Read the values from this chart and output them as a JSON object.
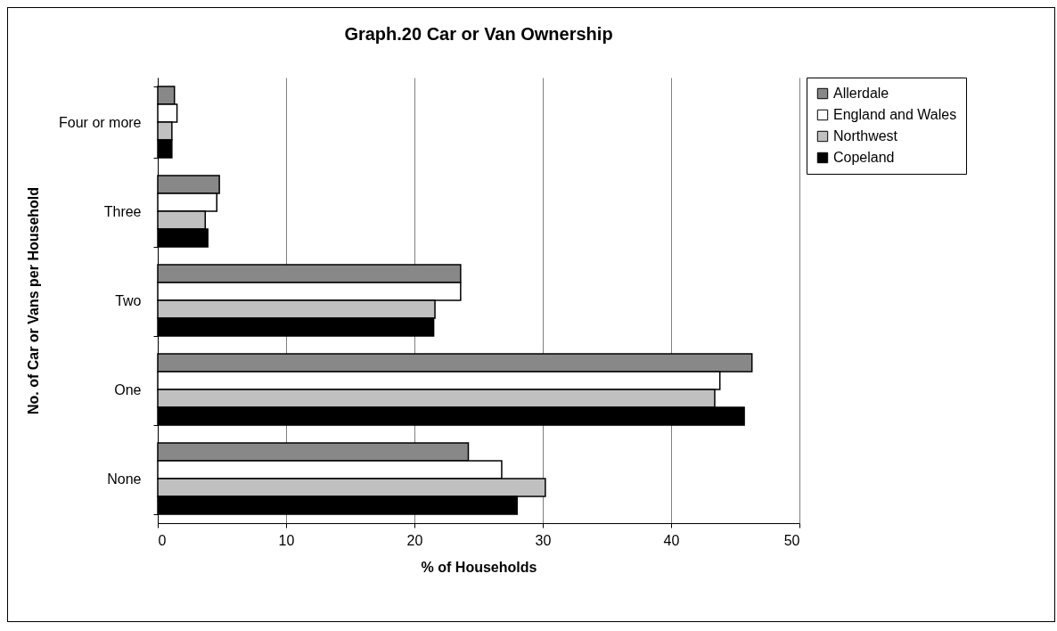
{
  "chart_data": {
    "type": "bar",
    "title": "Graph.20 Car or Van Ownership",
    "xlabel": "% of Households",
    "ylabel": "No. of Car or Vans per Household",
    "orientation": "horizontal",
    "categories": [
      "Four or more",
      "Three",
      "Two",
      "One",
      "None"
    ],
    "series": [
      {
        "name": "Allerdale",
        "color": "#888888",
        "values": [
          1.3,
          4.8,
          23.6,
          46.3,
          24.2
        ]
      },
      {
        "name": "England and Wales",
        "color": "#ffffff",
        "values": [
          1.5,
          4.6,
          23.6,
          43.8,
          26.8
        ]
      },
      {
        "name": "Northwest",
        "color": "#c0c0c0",
        "values": [
          1.1,
          3.7,
          21.6,
          43.4,
          30.2
        ]
      },
      {
        "name": "Copeland",
        "color": "#000000",
        "values": [
          1.1,
          3.9,
          21.5,
          45.7,
          28.0
        ]
      }
    ],
    "xlim": [
      0,
      50
    ],
    "xticks": [
      0,
      10,
      20,
      30,
      40,
      50
    ],
    "grid": "x",
    "legend": "right"
  }
}
